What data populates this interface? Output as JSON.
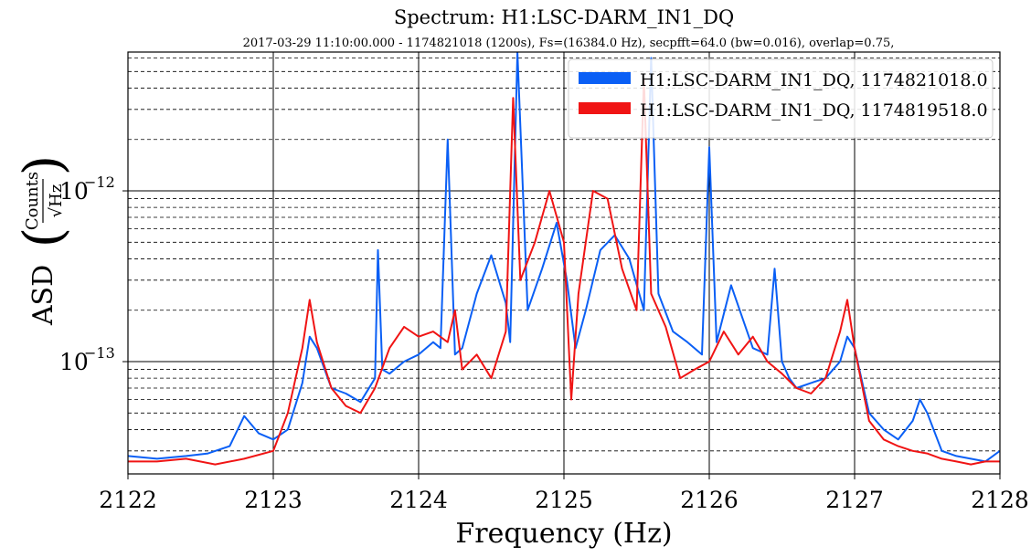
{
  "chart_data": {
    "type": "line",
    "title": "Spectrum: H1:LSC-DARM_IN1_DQ",
    "subtitle": "2017-03-29 11:10:00.000 - 1174821018 (1200s), Fs=(16384.0 Hz), secpfft=64.0 (bw=0.016), overlap=0.75,",
    "xlabel": "Frequency (Hz)",
    "ylabel_prefix": "ASD",
    "ylabel_numerator": "Counts",
    "ylabel_denominator": "√Hz",
    "xlim": [
      2122,
      2128
    ],
    "ylim": [
      2.2e-14,
      6.5e-12
    ],
    "yscale": "log",
    "grid": true,
    "legend_position": "top-right",
    "x_ticks": [
      2122,
      2123,
      2124,
      2125,
      2126,
      2127,
      2128
    ],
    "x_tick_labels": [
      "2122",
      "2123",
      "2124",
      "2125",
      "2126",
      "2127",
      "2128"
    ],
    "y_major_ticks": [
      1e-13,
      1e-12
    ],
    "y_tick_mantissa": "10",
    "y_tick_exponents": [
      "−13",
      "−12"
    ],
    "series": [
      {
        "name": "H1:LSC-DARM_IN1_DQ, 1174821018.0",
        "color": "#0a5ff5",
        "x": [
          2122.0,
          2122.2,
          2122.4,
          2122.55,
          2122.7,
          2122.8,
          2122.9,
          2123.0,
          2123.1,
          2123.2,
          2123.25,
          2123.3,
          2123.4,
          2123.5,
          2123.6,
          2123.7,
          2123.72,
          2123.75,
          2123.8,
          2123.9,
          2124.0,
          2124.1,
          2124.15,
          2124.2,
          2124.25,
          2124.3,
          2124.4,
          2124.5,
          2124.6,
          2124.63,
          2124.68,
          2124.75,
          2124.85,
          2124.95,
          2125.02,
          2125.08,
          2125.15,
          2125.25,
          2125.35,
          2125.45,
          2125.55,
          2125.6,
          2125.65,
          2125.75,
          2125.85,
          2125.95,
          2126.0,
          2126.05,
          2126.15,
          2126.3,
          2126.4,
          2126.45,
          2126.5,
          2126.55,
          2126.6,
          2126.7,
          2126.8,
          2126.9,
          2126.95,
          2127.0,
          2127.1,
          2127.2,
          2127.3,
          2127.4,
          2127.45,
          2127.5,
          2127.6,
          2127.7,
          2127.8,
          2127.9,
          2128.0
        ],
        "y": [
          2.8e-14,
          2.7e-14,
          2.8e-14,
          2.9e-14,
          3.2e-14,
          4.8e-14,
          3.8e-14,
          3.5e-14,
          4e-14,
          7.5e-14,
          1.4e-13,
          1.2e-13,
          7e-14,
          6.5e-14,
          5.8e-14,
          8e-14,
          4.5e-13,
          9e-14,
          8.5e-14,
          1e-13,
          1.1e-13,
          1.3e-13,
          1.2e-13,
          2e-12,
          1.1e-13,
          1.2e-13,
          2.5e-13,
          4.2e-13,
          2.2e-13,
          1.3e-13,
          6.5e-12,
          2e-13,
          3.5e-13,
          6.5e-13,
          3e-13,
          1.2e-13,
          2e-13,
          4.5e-13,
          5.5e-13,
          4e-13,
          2e-13,
          6e-12,
          2.5e-13,
          1.5e-13,
          1.3e-13,
          1.1e-13,
          1.8e-12,
          1.3e-13,
          2.8e-13,
          1.2e-13,
          1.1e-13,
          3.5e-13,
          1e-13,
          8e-14,
          7e-14,
          7.5e-14,
          8e-14,
          1e-13,
          1.4e-13,
          1.2e-13,
          5e-14,
          4e-14,
          3.5e-14,
          4.5e-14,
          6e-14,
          5e-14,
          3e-14,
          2.8e-14,
          2.7e-14,
          2.6e-14,
          3e-14
        ]
      },
      {
        "name": "H1:LSC-DARM_IN1_DQ, 1174819518.0",
        "color": "#f01414",
        "x": [
          2122.0,
          2122.2,
          2122.4,
          2122.6,
          2122.8,
          2123.0,
          2123.1,
          2123.2,
          2123.25,
          2123.3,
          2123.4,
          2123.5,
          2123.6,
          2123.7,
          2123.8,
          2123.9,
          2124.0,
          2124.1,
          2124.2,
          2124.25,
          2124.3,
          2124.4,
          2124.5,
          2124.6,
          2124.65,
          2124.7,
          2124.8,
          2124.9,
          2125.0,
          2125.05,
          2125.1,
          2125.2,
          2125.3,
          2125.4,
          2125.5,
          2125.55,
          2125.6,
          2125.7,
          2125.8,
          2125.9,
          2126.0,
          2126.1,
          2126.2,
          2126.3,
          2126.4,
          2126.5,
          2126.6,
          2126.7,
          2126.8,
          2126.9,
          2126.95,
          2127.0,
          2127.1,
          2127.2,
          2127.3,
          2127.4,
          2127.5,
          2127.6,
          2127.7,
          2127.8,
          2127.9,
          2128.0
        ],
        "y": [
          2.6e-14,
          2.6e-14,
          2.7e-14,
          2.5e-14,
          2.7e-14,
          3e-14,
          5e-14,
          1.2e-13,
          2.3e-13,
          1.3e-13,
          7e-14,
          5.5e-14,
          5e-14,
          7e-14,
          1.2e-13,
          1.6e-13,
          1.4e-13,
          1.5e-13,
          1.3e-13,
          2e-13,
          9e-14,
          1.1e-13,
          8e-14,
          1.5e-13,
          3.5e-12,
          3e-13,
          5e-13,
          1e-12,
          5e-13,
          6e-14,
          2.5e-13,
          1e-12,
          9e-13,
          3.5e-13,
          2e-13,
          4.5e-12,
          2.5e-13,
          1.6e-13,
          8e-14,
          9e-14,
          1e-13,
          1.5e-13,
          1.1e-13,
          1.4e-13,
          1e-13,
          8.5e-14,
          7e-14,
          6.5e-14,
          8e-14,
          1.5e-13,
          2.3e-13,
          1.2e-13,
          4.5e-14,
          3.5e-14,
          3.2e-14,
          3e-14,
          2.9e-14,
          2.7e-14,
          2.6e-14,
          2.5e-14,
          2.6e-14,
          2.6e-14
        ]
      }
    ]
  }
}
